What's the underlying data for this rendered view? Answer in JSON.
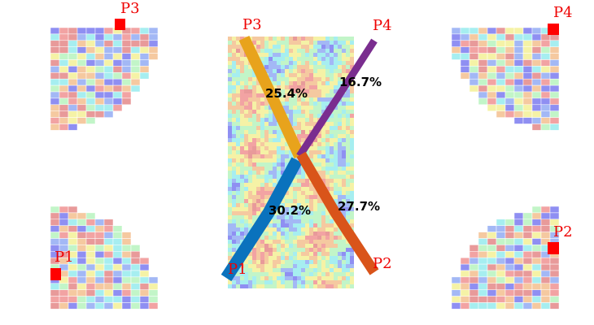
{
  "panels": {
    "top_left": "P3",
    "top_right": "P4",
    "bottom_left": "P1",
    "bottom_right": "P2"
  },
  "center": {
    "labels": {
      "p1": "P1",
      "p2": "P2",
      "p3": "P3",
      "p4": "P4"
    },
    "percents": {
      "p3": "25.4%",
      "p4": "16.7%",
      "p1": "30.2%",
      "p2": "27.7%"
    }
  }
}
